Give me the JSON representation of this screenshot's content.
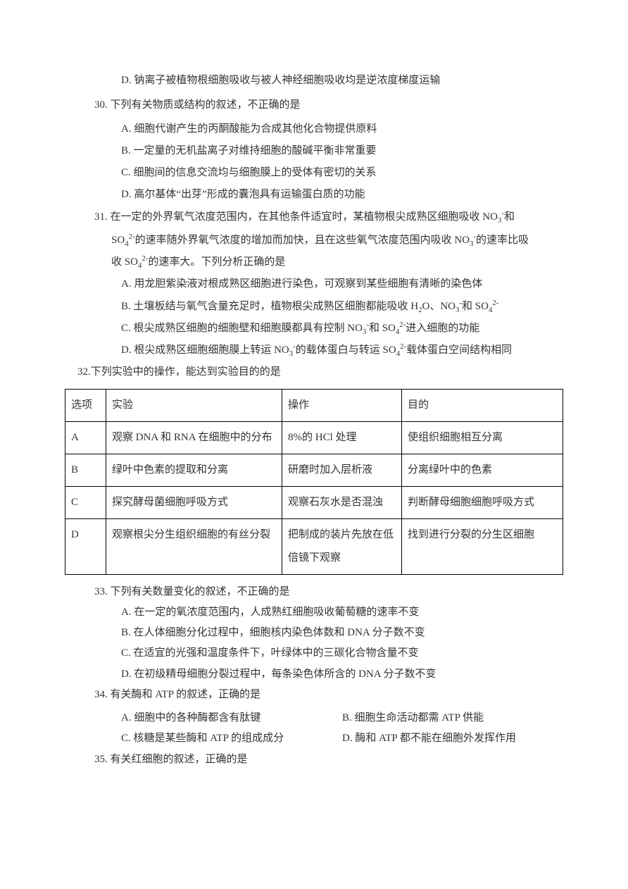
{
  "orphan_d": "D. 钠离子被植物根细胞吸收与被人神经细胞吸收均是逆浓度梯度运输",
  "q30": {
    "num": "30.",
    "stem": "下列有关物质或结构的叙述，不正确的是",
    "opts": {
      "A": "A. 细胞代谢产生的丙酮酸能为合成其他化合物提供原料",
      "B": "B. 一定量的无机盐离子对维持细胞的酸碱平衡非常重要",
      "C": "C. 细胞间的信息交流均与细胞膜上的受体有密切的关系",
      "D": "D. 高尔基体“出芽”形成的囊泡具有运输蛋白质的功能"
    }
  },
  "q31": {
    "num": "31.",
    "line1_html": "在一定的外界氧气浓度范围内，在其他条件适宜时，某植物根尖成熟区细胞吸收 NO<sub>3</sub><sup>-</sup>和",
    "line2_html": "SO<sub>4</sub><sup>2-</sup>的速率随外界氧气浓度的增加而加快，且在这些氧气浓度范围内吸收 NO<sub>3</sub><sup>-</sup>的速率比吸",
    "line3_html": "收 SO<sub>4</sub><sup>2-</sup>的速率大。下列分析正确的是",
    "opts": {
      "A": "A. 用龙胆紫染液对根成熟区细胞进行染色，可观察到某些细胞有清晰的染色体",
      "B_html": "B. 土壤板结与氧气含量充足时，植物根尖成熟区细胞都能吸收 H<sub>2</sub>O、NO<sub>3</sub><sup>-</sup>和 SO<sub>4</sub><sup>2-</sup>",
      "C_html": "C. 根尖成熟区细胞的细胞壁和细胞膜都具有控制 NO<sub>3</sub><sup>-</sup>和 SO<sub>4</sub><sup>2-</sup>进入细胞的功能",
      "D_html": "D. 根尖成熟区细胞细胞膜上转运 NO<sub>3</sub><sup>-</sup>的载体蛋白与转运 SO<sub>4</sub><sup>2-</sup>载体蛋白空间结构相同"
    }
  },
  "q32": {
    "num": "32.",
    "stem": "下列实验中的操作，能达到实验目的的是",
    "headers": {
      "c1": "选项",
      "c2": "实验",
      "c3": "操作",
      "c4": "目的"
    },
    "rows": [
      {
        "c1": "A",
        "c2": "观察 DNA 和 RNA 在细胞中的分布",
        "c3": "8%的 HCl 处理",
        "c4": "使组织细胞相互分离"
      },
      {
        "c1": "B",
        "c2": "绿叶中色素的提取和分离",
        "c3": "研磨时加入层析液",
        "c4": "分离绿叶中的色素"
      },
      {
        "c1": "C",
        "c2": "探究酵母菌细胞呼吸方式",
        "c3": "观察石灰水是否混浊",
        "c4": "判断酵母细胞细胞呼吸方式"
      },
      {
        "c1": "D",
        "c2": "观察根尖分生组织细胞的有丝分裂",
        "c3": "把制成的装片先放在低倍镜下观察",
        "c4": "找到进行分裂的分生区细胞"
      }
    ]
  },
  "q33": {
    "num": "33.",
    "stem": "下列有关数量变化的叙述，不正确的是",
    "opts": {
      "A": "A. 在一定的氧浓度范围内，人成熟红细胞吸收葡萄糖的速率不变",
      "B": "B. 在人体细胞分化过程中，细胞核内染色体数和 DNA 分子数不变",
      "C": "C. 在适宜的光强和温度条件下，叶绿体中的三碳化合物含量不变",
      "D": "D. 在初级精母细胞分裂过程中，每条染色体所含的 DNA 分子数不变"
    }
  },
  "q34": {
    "num": "34.",
    "stem": "有关酶和 ATP 的叙述，正确的是",
    "opts": {
      "A": "A. 细胞中的各种酶都含有肽键",
      "B": "B. 细胞生命活动都需 ATP 供能",
      "C": "C. 核糖是某些酶和 ATP 的组成成分",
      "D": "D. 酶和 ATP 都不能在细胞外发挥作用"
    }
  },
  "q35": {
    "num": "35.",
    "stem": "有关红细胞的叙述，正确的是"
  }
}
